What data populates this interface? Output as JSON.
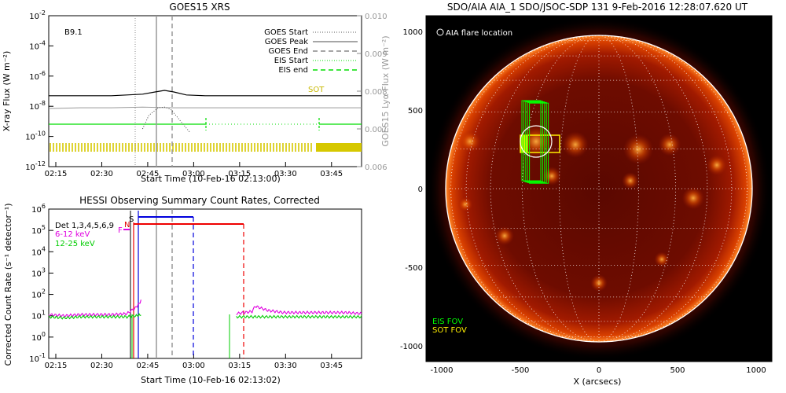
{
  "left_panels": {
    "goes": {
      "title": "GOES15 XRS",
      "ylabel": "X-ray Flux (W m⁻²)",
      "y2label": "GOES15 Lyα Flux (W m⁻²)",
      "xlabel": "Start Time (10-Feb-16 02:13:00)",
      "class_label": "B9.1",
      "sot_label": "SOT",
      "legend": [
        "GOES Start",
        "GOES Peak",
        "GOES End",
        "EIS Start",
        "EIS end"
      ]
    },
    "hessi": {
      "title": "HESSI Observing Summary Count Rates, Corrected",
      "ylabel": "Corrected Count Rate (s⁻¹ detector⁻¹)",
      "xlabel": "Start Time (10-Feb-16 02:13:02)",
      "det_label": "Det 1,3,4,5,6,9",
      "band1": "6-12 keV",
      "band2": "12-25 keV",
      "flag_s": "S",
      "flag_n": "N",
      "flag_f": "F"
    }
  },
  "right_panel": {
    "title": "SDO/AIA AIA_1 SDO/JSOC-SDP 131   9-Feb-2016 12:28:07.620 UT",
    "flare_label": "AIA flare location",
    "xlabel": "X (arcsecs)",
    "eis_fov": "EIS FOV",
    "sot_fov": "SOT FOV"
  },
  "chart_data": [
    {
      "type": "line",
      "title": "GOES15 XRS",
      "xlabel": "Start Time (10-Feb-16 02:13:00)",
      "ylabel": "X-ray Flux (W m⁻²)",
      "ylog": true,
      "ylim_exp": [
        -12,
        -2
      ],
      "y2lim": [
        0.006,
        0.01
      ],
      "y2ticks": [
        "0.006",
        "0.007",
        "0.008",
        "0.009",
        "0.010"
      ],
      "x_ticks": [
        "02:15",
        "02:30",
        "02:45",
        "03:00",
        "03:15",
        "03:30",
        "03:45"
      ],
      "y_ticks_exp": [
        -12,
        -10,
        -8,
        -6,
        -4,
        -2
      ],
      "xlim_min": [
        0,
        100
      ],
      "events_min": {
        "goes_start": 30,
        "goes_peak": 37,
        "goes_end": 44,
        "eis_start": 50,
        "eis_end": 100
      },
      "series": [
        {
          "name": "GOES Peak",
          "x_min": [
            0,
            10,
            20,
            30,
            34,
            37,
            40,
            44,
            50,
            60,
            70,
            80,
            90,
            100
          ],
          "y_exp": [
            -7.3,
            -7.3,
            -7.3,
            -7.2,
            -7.05,
            -6.95,
            -7.05,
            -7.25,
            -7.3,
            -7.3,
            -7.3,
            -7.3,
            -7.3,
            -7.3
          ]
        },
        {
          "x_min": [
            0,
            10,
            20,
            30,
            40,
            50,
            60,
            70,
            80,
            90,
            100
          ],
          "y_exp": [
            -8.15,
            -8.1,
            -8.1,
            -8.05,
            -8.1,
            -8.1,
            -8.1,
            -8.1,
            -8.1,
            -8.1,
            -8.1
          ]
        },
        {
          "x_min": [
            30,
            32,
            35,
            37,
            39,
            41,
            43,
            45
          ],
          "y_exp": [
            -9.5,
            -8.6,
            -8.1,
            -8.05,
            -8.2,
            -8.7,
            -9.2,
            -9.7
          ]
        }
      ]
    },
    {
      "type": "line",
      "title": "HESSI Observing Summary Count Rates, Corrected",
      "xlabel": "Start Time (10-Feb-16 02:13:02)",
      "ylabel": "Corrected Count Rate (s⁻¹ detector⁻¹)",
      "ylog": true,
      "ylim_exp": [
        -1,
        6
      ],
      "x_ticks": [
        "02:15",
        "02:30",
        "02:45",
        "03:00",
        "03:15",
        "03:30",
        "03:45"
      ],
      "y_ticks_exp": [
        -1,
        0,
        1,
        2,
        3,
        4,
        5,
        6
      ],
      "xlim_min": [
        0,
        100
      ],
      "events_min": {
        "goes_peak": 37,
        "goes_end": 44,
        "s_start": 31,
        "s_end": 53,
        "n_start": 30,
        "n_end": 70
      },
      "series": [
        {
          "name": "6-12 keV",
          "x_min": [
            0,
            5,
            10,
            15,
            20,
            25,
            28,
            29.5,
            30,
            58,
            60,
            65,
            66,
            70,
            75,
            80,
            85,
            90,
            95,
            100
          ],
          "y_exp": [
            1.05,
            1.0,
            1.05,
            1.05,
            1.05,
            1.1,
            1.4,
            1.7,
            null,
            null,
            1.1,
            1.2,
            1.45,
            1.25,
            1.15,
            1.15,
            1.15,
            1.15,
            1.15,
            1.1
          ]
        },
        {
          "name": "12-25 keV",
          "x_min": [
            0,
            5,
            10,
            15,
            20,
            25,
            28,
            29.5,
            30,
            58,
            60,
            65,
            70,
            75,
            80,
            85,
            90,
            95,
            100
          ],
          "y_exp": [
            0.95,
            0.9,
            0.95,
            0.95,
            0.95,
            0.95,
            1.0,
            1.05,
            null,
            null,
            0.95,
            0.95,
            0.95,
            0.95,
            0.95,
            0.95,
            0.95,
            0.95,
            0.95
          ]
        }
      ]
    },
    {
      "type": "heatmap",
      "title": "SDO/AIA AIA_1 SDO/JSOC-SDP 131   9-Feb-2016 12:28:07.620 UT",
      "xlabel": "X (arcsecs)",
      "xlim": [
        -1100,
        1100
      ],
      "ylim": [
        -1100,
        1100
      ],
      "x_ticks": [
        -1000,
        -500,
        0,
        500,
        1000
      ],
      "y_ticks": [
        -1000,
        -500,
        0,
        500,
        1000
      ],
      "flare_location": {
        "x": -400,
        "y": 300,
        "r": 100
      },
      "eis_fov": {
        "x0": -490,
        "x1": -300,
        "y0": 50,
        "y1": 560
      },
      "sot_fov": {
        "x0": -500,
        "x1": -250,
        "y0": 230,
        "y1": 340
      }
    }
  ]
}
